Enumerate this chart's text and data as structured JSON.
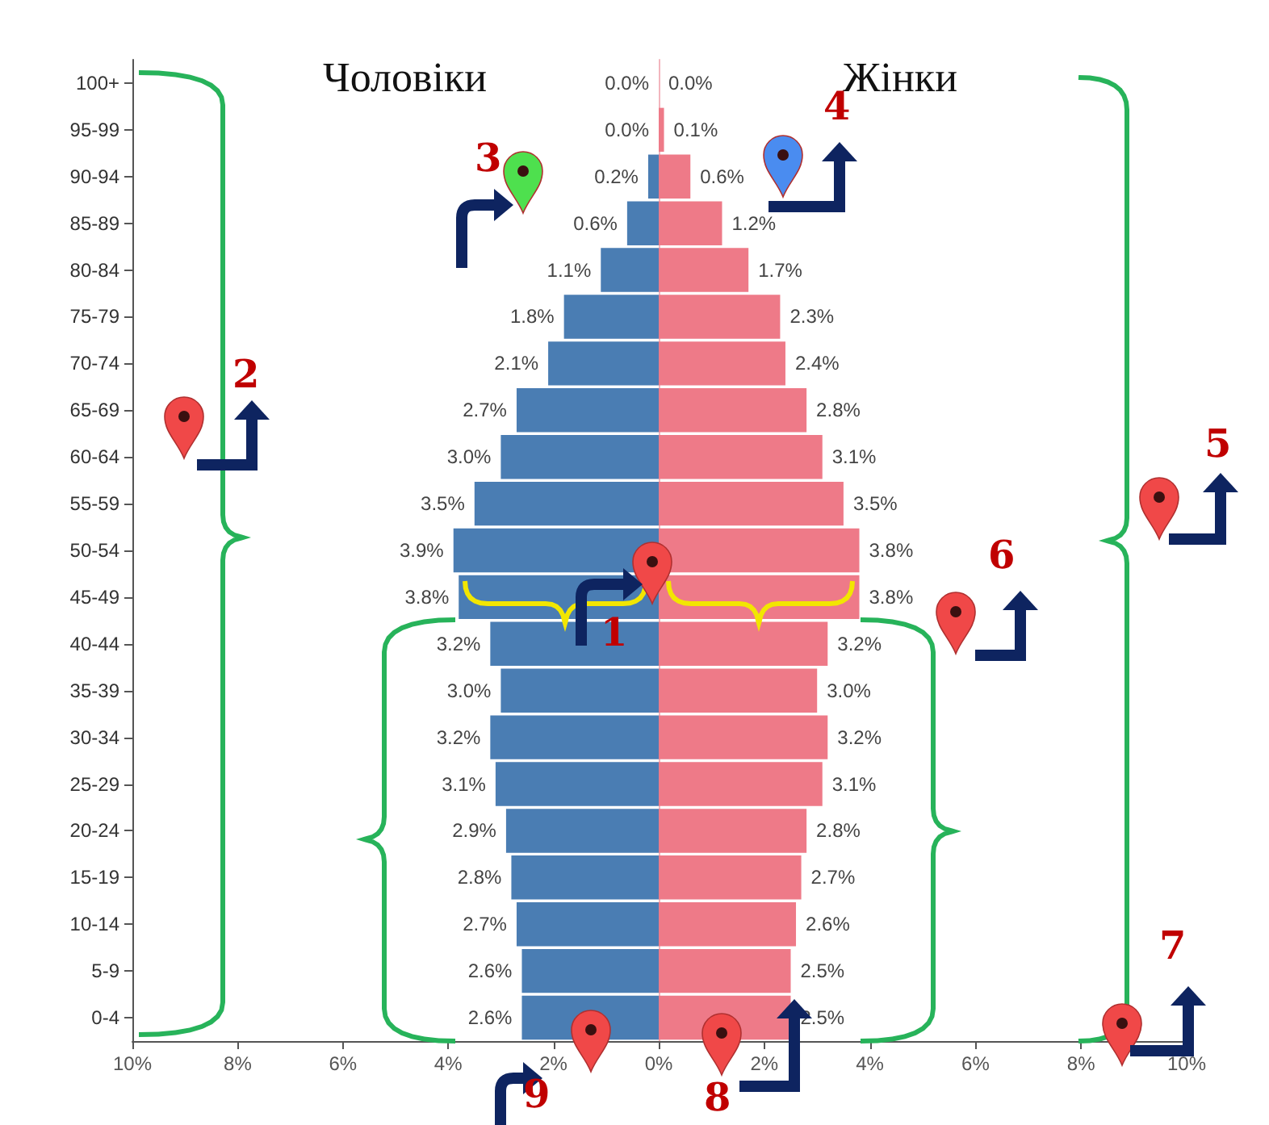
{
  "chart_data": [
    {
      "type": "bar",
      "orientation": "horizontal",
      "title": "Чоловіки",
      "categories": [
        "100+",
        "95-99",
        "90-94",
        "85-89",
        "80-84",
        "75-79",
        "70-74",
        "65-69",
        "60-64",
        "55-59",
        "50-54",
        "45-49",
        "40-44",
        "35-39",
        "30-34",
        "25-29",
        "20-24",
        "15-19",
        "10-14",
        "5-9",
        "0-4"
      ],
      "color": "#4a7db3",
      "values": [
        0,
        0,
        0.2,
        0.6,
        1.1,
        1.8,
        2.1,
        2.7,
        3.0,
        3.5,
        3.9,
        3.8,
        3.2,
        3.0,
        3.2,
        3.1,
        2.9,
        2.8,
        2.7,
        2.6,
        2.6
      ],
      "value_labels": [
        "0.0%",
        "0.0%",
        "0.2%",
        "0.6%",
        "1.1%",
        "1.8%",
        "2.1%",
        "2.7%",
        "3.0%",
        "3.5%",
        "3.9%",
        "3.8%",
        "3.2%",
        "3.0%",
        "3.2%",
        "3.1%",
        "2.9%",
        "2.8%",
        "2.7%",
        "2.6%",
        "2.6%"
      ],
      "xlim": [
        10,
        0
      ],
      "xticks": [
        {
          "value": 10,
          "label": "10%"
        },
        {
          "value": 8,
          "label": "8%"
        },
        {
          "value": 6,
          "label": "6%"
        },
        {
          "value": 4,
          "label": "4%"
        },
        {
          "value": 2,
          "label": "2%"
        },
        {
          "value": 0,
          "label": "0%"
        }
      ],
      "annotations": [
        {
          "text": "1",
          "x": 0,
          "y": "45-49"
        },
        "2",
        "3",
        "4",
        "5",
        "6",
        "7",
        "8",
        "9"
      ]
    },
    {
      "type": "bar",
      "orientation": "horizontal",
      "title": "Жінки",
      "categories": [
        null,
        null,
        null,
        null,
        null,
        null,
        null,
        null,
        null,
        null,
        null,
        null,
        null,
        null,
        null,
        null,
        null,
        null,
        null,
        null,
        null
      ],
      "color": "#ee7a88",
      "values": [
        0,
        0.1,
        0.6,
        1.2,
        1.7,
        2.3,
        2.4,
        2.8,
        3.1,
        3.5,
        3.8,
        3.8,
        3.2,
        3.0,
        3.2,
        3.1,
        2.8,
        2.7,
        2.6,
        2.5,
        2.5
      ],
      "value_labels": [
        "0.0%",
        "0.1%",
        "0.6%",
        "1.2%",
        "1.7%",
        "2.3%",
        "2.4%",
        "2.8%",
        "3.1%",
        "3.5%",
        "3.8%",
        "3.8%",
        "3.2%",
        "3.0%",
        "3.2%",
        "3.1%",
        "2.8%",
        "2.7%",
        "2.6%",
        "2.5%",
        "2.5%"
      ],
      "xlim": [
        0,
        10
      ],
      "xticks": [
        {
          "value": 0,
          "label": null
        },
        {
          "value": 2,
          "label": "2%"
        },
        {
          "value": 4,
          "label": "4%"
        },
        {
          "value": 6,
          "label": "6%"
        },
        {
          "value": 8,
          "label": "8%"
        },
        {
          "value": 10,
          "label": "10%"
        }
      ],
      "tick_labels": "x"
    }
  ]
}
